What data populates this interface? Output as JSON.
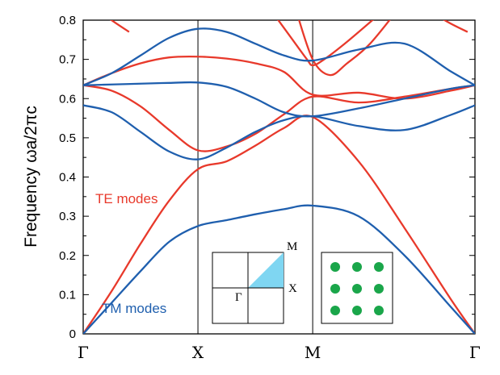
{
  "chart_data": {
    "type": "line",
    "title": "",
    "xlabel": "",
    "ylabel": "Frequency  ωa/2πc",
    "x_ticks": [
      "Γ",
      "X",
      "M",
      "Γ"
    ],
    "x_tick_positions": [
      0,
      1,
      2,
      3.4142
    ],
    "xlim": [
      0,
      3.4142
    ],
    "ylim": [
      0,
      0.8
    ],
    "y_ticks": [
      "0",
      "0.1",
      "0.2",
      "0.3",
      "0.4",
      "0.5",
      "0.6",
      "0.7",
      "0.8"
    ],
    "grid": false,
    "annotations": {
      "te_label": "TE modes",
      "tm_label": "TM modes",
      "inset_bz_labels": [
        "Γ",
        "X",
        "M"
      ]
    },
    "colors": {
      "TE": "#e8392b",
      "TM": "#1f5fae",
      "inset_fill": "#7fd6f2",
      "rods": "#1aa64a"
    },
    "series": [
      {
        "group": "TM",
        "x": [
          0,
          0.25,
          0.5,
          0.75,
          1,
          1.25,
          1.5,
          1.75,
          2,
          2.4,
          2.8,
          3.2,
          3.4142
        ],
        "y": [
          0,
          0.08,
          0.16,
          0.235,
          0.275,
          0.29,
          0.305,
          0.318,
          0.327,
          0.3,
          0.2,
          0.07,
          0
        ]
      },
      {
        "group": "TM",
        "x": [
          0,
          0.25,
          0.5,
          0.75,
          1,
          1.25,
          1.5,
          1.75,
          2,
          2.4,
          2.8,
          3.2,
          3.4142
        ],
        "y": [
          0.583,
          0.565,
          0.515,
          0.465,
          0.445,
          0.475,
          0.515,
          0.545,
          0.555,
          0.53,
          0.52,
          0.558,
          0.583
        ]
      },
      {
        "group": "TM",
        "x": [
          0,
          0.25,
          0.5,
          0.75,
          1,
          1.25,
          1.5,
          1.75,
          2,
          2.4,
          2.8,
          3.2,
          3.4142
        ],
        "y": [
          0.634,
          0.636,
          0.638,
          0.64,
          0.641,
          0.63,
          0.6,
          0.565,
          0.555,
          0.575,
          0.6,
          0.625,
          0.634
        ]
      },
      {
        "group": "TM",
        "x": [
          0,
          0.25,
          0.5,
          0.75,
          1,
          1.25,
          1.5,
          1.75,
          2,
          2.4,
          2.8,
          3.2,
          3.4142
        ],
        "y": [
          0.634,
          0.665,
          0.71,
          0.755,
          0.778,
          0.77,
          0.74,
          0.71,
          0.697,
          0.725,
          0.74,
          0.67,
          0.634
        ]
      },
      {
        "group": "TE",
        "x": [
          0,
          0.25,
          0.5,
          0.75,
          1,
          1.25,
          1.5,
          1.75,
          2,
          2.4,
          2.8,
          3.2,
          3.4142
        ],
        "y": [
          0,
          0.11,
          0.23,
          0.34,
          0.42,
          0.44,
          0.48,
          0.525,
          0.553,
          0.44,
          0.27,
          0.09,
          0
        ]
      },
      {
        "group": "TE",
        "x": [
          0,
          0.25,
          0.5,
          0.75,
          1,
          1.25,
          1.5,
          1.75,
          2,
          2.4,
          2.8,
          3.2,
          3.4142
        ],
        "y": [
          0.634,
          0.62,
          0.58,
          0.52,
          0.468,
          0.478,
          0.51,
          0.56,
          0.605,
          0.59,
          0.605,
          0.625,
          0.634
        ]
      },
      {
        "group": "TE",
        "x": [
          0,
          0.25,
          0.5,
          0.75,
          1,
          1.25,
          1.5,
          1.75,
          2,
          2.4,
          2.8,
          3.2,
          3.4142
        ],
        "y": [
          0.634,
          0.665,
          0.69,
          0.705,
          0.707,
          0.702,
          0.69,
          0.668,
          0.61,
          0.615,
          0.6,
          0.62,
          0.634
        ]
      },
      {
        "group": "TE",
        "x": [
          0,
          0.2,
          0.4
        ],
        "y": [
          0.86,
          0.81,
          0.77
        ]
      },
      {
        "group": "TE",
        "x": [
          1.6,
          1.8,
          1.95,
          2,
          2.1,
          2.3,
          2.6
        ],
        "y": [
          0.84,
          0.76,
          0.7,
          0.685,
          0.7,
          0.745,
          0.82
        ]
      },
      {
        "group": "TE",
        "x": [
          1.85,
          2,
          2.15,
          2.3,
          2.5,
          2.75
        ],
        "y": [
          0.83,
          0.7,
          0.66,
          0.69,
          0.74,
          0.83
        ]
      },
      {
        "group": "TE",
        "x": [
          2.9,
          3.15,
          3.35
        ],
        "y": [
          0.85,
          0.8,
          0.77
        ]
      }
    ]
  }
}
